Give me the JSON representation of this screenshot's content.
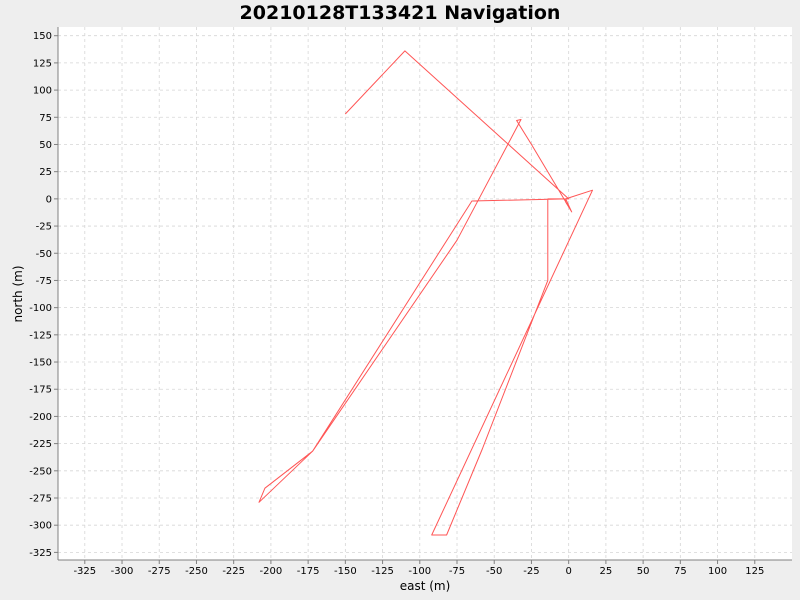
{
  "chart_data": {
    "type": "line",
    "title": "20210128T133421 Navigation",
    "xlabel": "east (m)",
    "ylabel": "north (m)",
    "xlim": [
      -343,
      150
    ],
    "ylim": [
      -332,
      158
    ],
    "xticks": [
      -325,
      -300,
      -275,
      -250,
      -225,
      -200,
      -175,
      -150,
      -125,
      -100,
      -75,
      -50,
      -25,
      0,
      25,
      50,
      75,
      100,
      125
    ],
    "yticks": [
      150,
      125,
      100,
      75,
      50,
      25,
      0,
      -25,
      -50,
      -75,
      -100,
      -125,
      -150,
      -175,
      -200,
      -225,
      -250,
      -275,
      -300,
      -325
    ],
    "grid": true,
    "series_color": "#ff5555",
    "series": [
      {
        "x": [
          -150,
          -110,
          0,
          -14,
          -14,
          -2,
          -2,
          2,
          -2,
          -14,
          -14,
          -58,
          -82,
          -92,
          16,
          -2,
          -65,
          -172,
          -204,
          -208,
          -172,
          -75,
          -32,
          -35,
          -25,
          2
        ],
        "y": [
          78,
          136,
          0,
          0,
          0,
          0,
          -3,
          -12,
          0,
          0,
          -75,
          -230,
          -309,
          -309,
          8,
          0,
          -2,
          -232,
          -266,
          -279,
          -232,
          -38,
          73,
          72,
          50,
          -12
        ]
      }
    ]
  }
}
